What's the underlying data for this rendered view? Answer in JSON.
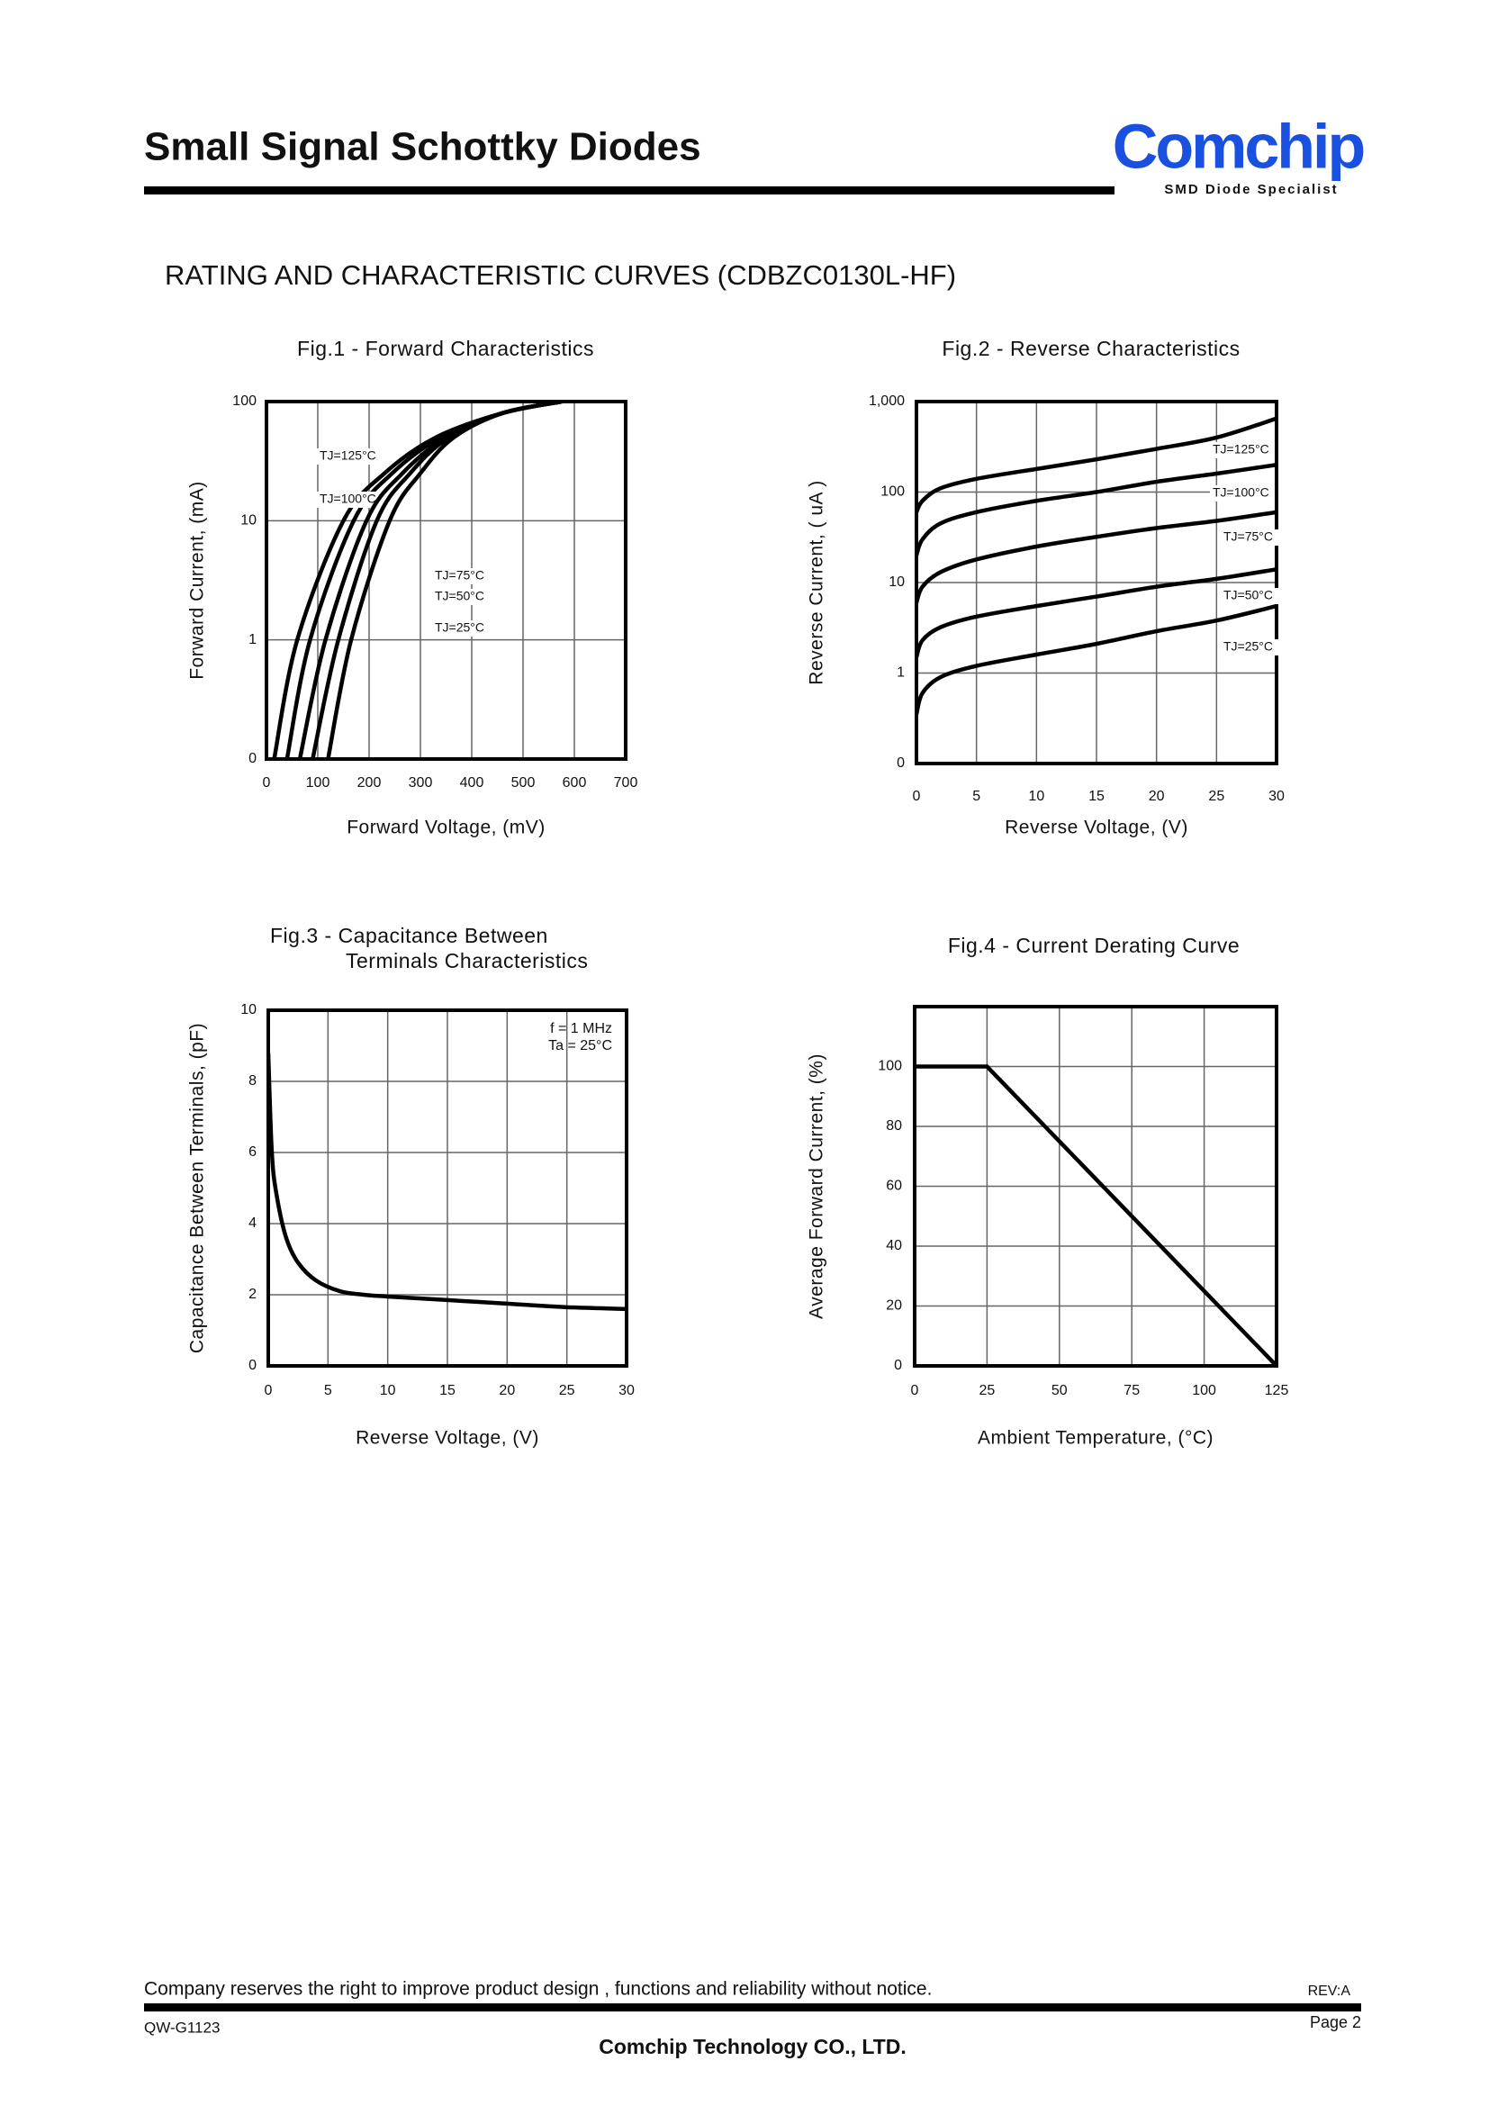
{
  "header": {
    "title": "Small Signal Schottky Diodes",
    "logo": "Comchip",
    "tagline": "SMD Diode Specialist"
  },
  "heading": "RATING AND CHARACTERISTIC CURVES (CDBZC0130L-HF)",
  "chart_data": [
    {
      "type": "line",
      "title": "Fig.1 - Forward Characteristics",
      "xlabel": "Forward Voltage, (mV)",
      "ylabel": "Forward Current, (mA)",
      "xlim": [
        0,
        700
      ],
      "xticks": [
        0,
        100,
        200,
        300,
        400,
        500,
        600,
        700
      ],
      "ylim": [
        0.1,
        100
      ],
      "yticks": [
        {
          "value": 0.1,
          "label": "0"
        },
        1,
        10,
        100
      ],
      "yscale": "log",
      "grid": true,
      "series": [
        {
          "name": "TJ=125°C",
          "color": "#000000",
          "x": [
            15,
            60,
            150,
            230,
            330,
            460,
            575
          ],
          "values": [
            0.1,
            1,
            10,
            25,
            50,
            80,
            100
          ]
        },
        {
          "name": "TJ=100°C",
          "color": "#000000",
          "x": [
            40,
            85,
            170,
            245,
            340,
            460,
            575
          ],
          "values": [
            0.1,
            1,
            10,
            25,
            50,
            80,
            100
          ]
        },
        {
          "name": "TJ=75°C",
          "color": "#000000",
          "x": [
            65,
            115,
            195,
            265,
            350,
            460,
            575
          ],
          "values": [
            0.1,
            1,
            10,
            25,
            50,
            80,
            100
          ]
        },
        {
          "name": "TJ=50°C",
          "color": "#000000",
          "x": [
            90,
            140,
            215,
            280,
            355,
            460,
            575
          ],
          "values": [
            0.1,
            1,
            10,
            25,
            50,
            80,
            100
          ]
        },
        {
          "name": "TJ=25°C",
          "color": "#000000",
          "x": [
            120,
            165,
            240,
            300,
            365,
            460,
            575
          ],
          "values": [
            0.1,
            1,
            10,
            25,
            50,
            80,
            100
          ]
        }
      ]
    },
    {
      "type": "line",
      "title": "Fig.2 - Reverse Characteristics",
      "xlabel": "Reverse Voltage, (V)",
      "ylabel": "Reverse Current, ( uA )",
      "xlim": [
        0,
        30
      ],
      "xticks": [
        0,
        5,
        10,
        15,
        20,
        25,
        30
      ],
      "ylim": [
        0.1,
        1000
      ],
      "yticks": [
        {
          "value": 0.1,
          "label": "0"
        },
        1,
        10,
        100,
        {
          "value": 1000,
          "label": "1,000"
        }
      ],
      "yscale": "log",
      "grid": true,
      "series": [
        {
          "name": "TJ=125°C",
          "color": "#000000",
          "x": [
            0,
            0.5,
            2,
            5,
            10,
            15,
            20,
            25,
            30
          ],
          "values": [
            60,
            80,
            110,
            140,
            180,
            230,
            300,
            400,
            650
          ]
        },
        {
          "name": "TJ=100°C",
          "color": "#000000",
          "x": [
            0,
            0.5,
            2,
            5,
            10,
            15,
            20,
            25,
            30
          ],
          "values": [
            20,
            30,
            45,
            60,
            80,
            100,
            130,
            160,
            200
          ]
        },
        {
          "name": "TJ=75°C",
          "color": "#000000",
          "x": [
            0,
            0.5,
            2,
            5,
            10,
            15,
            20,
            25,
            30
          ],
          "values": [
            6,
            9,
            13,
            18,
            25,
            32,
            40,
            48,
            60
          ]
        },
        {
          "name": "TJ=50°C",
          "color": "#000000",
          "x": [
            0,
            0.5,
            2,
            5,
            10,
            15,
            20,
            25,
            30
          ],
          "values": [
            1.5,
            2.3,
            3.2,
            4.2,
            5.5,
            7,
            9,
            11,
            14
          ]
        },
        {
          "name": "TJ=25°C",
          "color": "#000000",
          "x": [
            0,
            0.5,
            2,
            5,
            10,
            15,
            20,
            25,
            30
          ],
          "values": [
            0.35,
            0.6,
            0.9,
            1.2,
            1.6,
            2.1,
            2.9,
            3.8,
            5.5
          ]
        }
      ]
    },
    {
      "type": "line",
      "title": [
        "Fig.3 - Capacitance Between",
        "Terminals Characteristics"
      ],
      "xlabel": "Reverse Voltage, (V)",
      "ylabel": "Capacitance Between Terminals, (pF)",
      "xlim": [
        0,
        30
      ],
      "xticks": [
        0,
        5,
        10,
        15,
        20,
        25,
        30
      ],
      "ylim": [
        0,
        10
      ],
      "yticks": [
        0,
        2,
        4,
        6,
        8,
        10
      ],
      "grid": true,
      "annotations": [
        "f = 1 MHz",
        "Ta = 25°C"
      ],
      "series": [
        {
          "color": "#000000",
          "x": [
            0,
            0.3,
            0.7,
            1.5,
            2.5,
            4,
            6,
            8,
            10,
            15,
            20,
            25,
            30
          ],
          "values": [
            8.8,
            6,
            4.8,
            3.6,
            2.9,
            2.4,
            2.1,
            2.0,
            1.95,
            1.85,
            1.75,
            1.65,
            1.6
          ]
        }
      ]
    },
    {
      "type": "line",
      "title": "Fig.4 - Current Derating Curve",
      "xlabel": "Ambient Temperature, (°C)",
      "ylabel": "Average Forward Current, (%)",
      "xlim": [
        0,
        125
      ],
      "xticks": [
        0,
        25,
        50,
        75,
        100,
        125
      ],
      "ylim": [
        0,
        120
      ],
      "yticks": [
        0,
        20,
        40,
        60,
        80,
        100
      ],
      "grid": true,
      "series": [
        {
          "color": "#000000",
          "x": [
            0,
            25,
            125
          ],
          "values": [
            100,
            100,
            0
          ]
        }
      ]
    }
  ],
  "footer": {
    "notice": "Company reserves the right to improve product design , functions and reliability without notice.",
    "rev": "REV:A",
    "doc": "QW-G1123",
    "page": "Page 2",
    "company": "Comchip Technology CO., LTD."
  }
}
